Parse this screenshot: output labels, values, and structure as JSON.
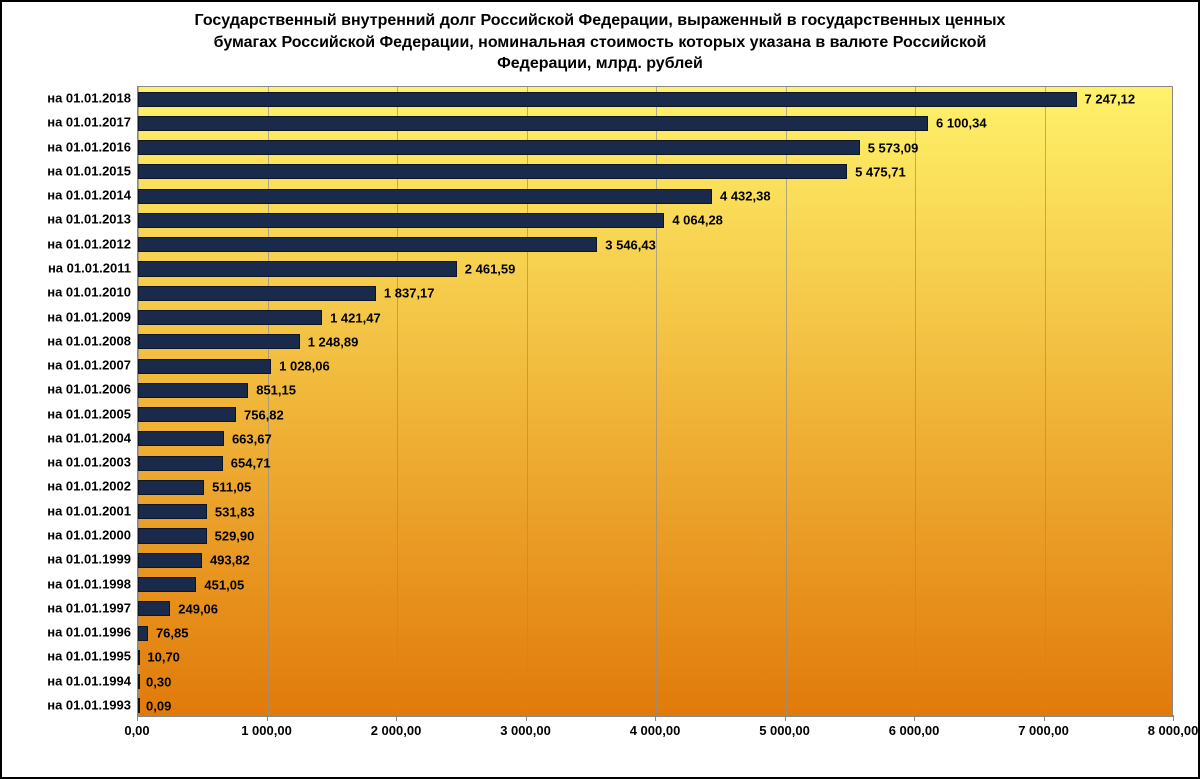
{
  "title_lines": [
    "Государственный внутренний долг Российской Федерации, выраженный в государственных ценных",
    "бумагах Российской  Федерации, номинальная стоимость которых указана в валюте Российской",
    "Федерации, млрд. рублей"
  ],
  "title_fontsize": 16,
  "chart": {
    "type": "bar-horizontal",
    "x_min": 0,
    "x_max": 8000,
    "x_tick_step": 1000,
    "x_tick_labels": [
      "0,00",
      "1 000,00",
      "2 000,00",
      "3 000,00",
      "4 000,00",
      "5 000,00",
      "6 000,00",
      "7 000,00",
      "8 000,00"
    ],
    "bar_color": "#1a2a4a",
    "bar_border_color": "#0d1525",
    "grid_color": "#909090",
    "plot_border_color": "#888888",
    "bg_gradient_top": "#fff26a",
    "bg_gradient_bottom": "#e17a0a",
    "ylabel_fontsize": 13,
    "xlabel_fontsize": 13,
    "datalabel_fontsize": 13,
    "datalabel_color": "#000000",
    "rows": [
      {
        "label": "на 01.01.2018",
        "value": 7247.12,
        "text": "7 247,12"
      },
      {
        "label": "на 01.01.2017",
        "value": 6100.34,
        "text": "6 100,34"
      },
      {
        "label": "на 01.01.2016",
        "value": 5573.09,
        "text": "5 573,09"
      },
      {
        "label": "на 01.01.2015",
        "value": 5475.71,
        "text": "5 475,71"
      },
      {
        "label": "на 01.01.2014",
        "value": 4432.38,
        "text": "4 432,38"
      },
      {
        "label": "на 01.01.2013",
        "value": 4064.28,
        "text": "4 064,28"
      },
      {
        "label": "на 01.01.2012",
        "value": 3546.43,
        "text": "3 546,43"
      },
      {
        "label": "на 01.01.2011",
        "value": 2461.59,
        "text": "2 461,59"
      },
      {
        "label": "на 01.01.2010",
        "value": 1837.17,
        "text": "1 837,17"
      },
      {
        "label": "на 01.01.2009",
        "value": 1421.47,
        "text": "1 421,47"
      },
      {
        "label": "на 01.01.2008",
        "value": 1248.89,
        "text": "1 248,89"
      },
      {
        "label": "на 01.01.2007",
        "value": 1028.06,
        "text": "1 028,06"
      },
      {
        "label": "на 01.01.2006",
        "value": 851.15,
        "text": "851,15"
      },
      {
        "label": "на 01.01.2005",
        "value": 756.82,
        "text": "756,82"
      },
      {
        "label": "на 01.01.2004",
        "value": 663.67,
        "text": "663,67"
      },
      {
        "label": "на 01.01.2003",
        "value": 654.71,
        "text": "654,71"
      },
      {
        "label": "на 01.01.2002",
        "value": 511.05,
        "text": "511,05"
      },
      {
        "label": "на 01.01.2001",
        "value": 531.83,
        "text": "531,83"
      },
      {
        "label": "на 01.01.2000",
        "value": 529.9,
        "text": "529,90"
      },
      {
        "label": "на 01.01.1999",
        "value": 493.82,
        "text": "493,82"
      },
      {
        "label": "на 01.01.1998",
        "value": 451.05,
        "text": "451,05"
      },
      {
        "label": "на 01.01.1997",
        "value": 249.06,
        "text": "249,06"
      },
      {
        "label": "на 01.01.1996",
        "value": 76.85,
        "text": "76,85"
      },
      {
        "label": "на 01.01.1995",
        "value": 10.7,
        "text": "10,70"
      },
      {
        "label": "на 01.01.1994",
        "value": 0.3,
        "text": "0,30"
      },
      {
        "label": "на 01.01.1993",
        "value": 0.09,
        "text": "0,09"
      }
    ]
  }
}
